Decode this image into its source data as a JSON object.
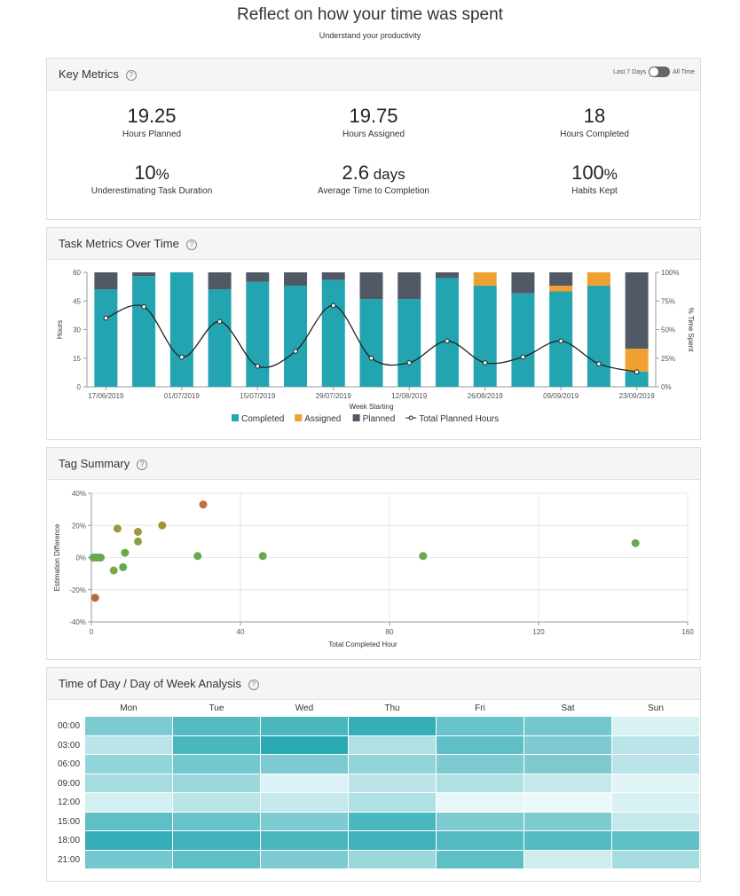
{
  "header": {
    "title": "Reflect on how your time was spent",
    "subtitle": "Understand your productivity"
  },
  "key_metrics": {
    "title": "Key Metrics",
    "toggle": {
      "left_label": "Last 7 Days",
      "right_label": "All Time",
      "state": "All Time"
    },
    "metrics": [
      {
        "value": "19.25",
        "unit": "",
        "label": "Hours Planned"
      },
      {
        "value": "19.75",
        "unit": "",
        "label": "Hours Assigned"
      },
      {
        "value": "18",
        "unit": "",
        "label": "Hours Completed"
      },
      {
        "value": "10",
        "unit": "%",
        "label": "Underestimating Task Duration"
      },
      {
        "value": "2.6",
        "unit": " days",
        "label": "Average Time to Completion"
      },
      {
        "value": "100",
        "unit": "%",
        "label": "Habits Kept"
      }
    ]
  },
  "task_metrics": {
    "title": "Task Metrics Over Time",
    "chart_data": {
      "type": "bar",
      "stacked": true,
      "xlabel": "Week Starting",
      "ylabel": "Hours",
      "y2label": "% Time Spent",
      "ylim": [
        0,
        60
      ],
      "yticks": [
        0,
        15,
        30,
        45,
        60
      ],
      "y2ticks": [
        "0%",
        "25%",
        "50%",
        "75%",
        "100%"
      ],
      "xticks": [
        "17/06/2019",
        "01/07/2019",
        "15/07/2019",
        "29/07/2019",
        "12/08/2019",
        "26/08/2019",
        "09/09/2019",
        "23/09/2019"
      ],
      "weeks": [
        "17/06/2019",
        "24/06/2019",
        "01/07/2019",
        "08/07/2019",
        "15/07/2019",
        "22/07/2019",
        "29/07/2019",
        "05/08/2019",
        "12/08/2019",
        "19/08/2019",
        "26/08/2019",
        "02/09/2019",
        "09/09/2019",
        "16/09/2019",
        "23/09/2019"
      ],
      "series": [
        {
          "name": "Completed",
          "color": "#22a5b0",
          "values": [
            51,
            58,
            60,
            51,
            55,
            53,
            56,
            46,
            46,
            57,
            53,
            49,
            50,
            53,
            8
          ]
        },
        {
          "name": "Assigned",
          "color": "#f0a030",
          "values": [
            0,
            0,
            0,
            0,
            0,
            0,
            0,
            0,
            0,
            0,
            7,
            0,
            3,
            7,
            12
          ]
        },
        {
          "name": "Planned",
          "color": "#525966",
          "values": [
            9,
            2,
            0,
            9,
            5,
            7,
            4,
            14,
            14,
            3,
            0,
            11,
            7,
            0,
            40
          ]
        }
      ],
      "line": {
        "name": "Total Planned Hours",
        "color": "#222222",
        "values": [
          60,
          70,
          26,
          57,
          18,
          31,
          71,
          25,
          21,
          40,
          21,
          26,
          40,
          20,
          13
        ]
      },
      "legend": "bottom"
    }
  },
  "tag_summary": {
    "title": "Tag Summary",
    "chart_data": {
      "type": "scatter",
      "xlabel": "Total Completed Hour",
      "ylabel": "Estimation Difference",
      "xlim": [
        0,
        160
      ],
      "ylim": [
        -40,
        40
      ],
      "xticks": [
        "0",
        "40",
        "80",
        "120",
        "160"
      ],
      "yticks": [
        "40%",
        "20%",
        "0%",
        "-20%",
        "-40%"
      ],
      "grid": true,
      "points": [
        {
          "x": 0.5,
          "y": 0,
          "color": "#6aa84f"
        },
        {
          "x": 1,
          "y": 0,
          "color": "#6aa84f"
        },
        {
          "x": 1.5,
          "y": 0,
          "color": "#6aa84f"
        },
        {
          "x": 2,
          "y": 0,
          "color": "#6aa84f"
        },
        {
          "x": 2.5,
          "y": 0,
          "color": "#6aa84f"
        },
        {
          "x": 1,
          "y": -25,
          "color": "#b46a3c"
        },
        {
          "x": 6,
          "y": -8,
          "color": "#7fa844"
        },
        {
          "x": 7,
          "y": 18,
          "color": "#a0963c"
        },
        {
          "x": 8.5,
          "y": -6,
          "color": "#6aa84f"
        },
        {
          "x": 9,
          "y": 3,
          "color": "#6aa84f"
        },
        {
          "x": 12.5,
          "y": 16,
          "color": "#a0963c"
        },
        {
          "x": 12.5,
          "y": 10,
          "color": "#8aa040"
        },
        {
          "x": 19,
          "y": 20,
          "color": "#a8903c"
        },
        {
          "x": 28.5,
          "y": 1,
          "color": "#6aa84f"
        },
        {
          "x": 30,
          "y": 33,
          "color": "#c0703a"
        },
        {
          "x": 46,
          "y": 1,
          "color": "#6aa84f"
        },
        {
          "x": 89,
          "y": 1,
          "color": "#6aa84f"
        },
        {
          "x": 146,
          "y": 9,
          "color": "#6aa84f"
        }
      ]
    }
  },
  "time_analysis": {
    "title": "Time of Day / Day of Week Analysis",
    "chart_data": {
      "type": "heatmap",
      "days": [
        "Mon",
        "Tue",
        "Wed",
        "Thu",
        "Fri",
        "Sat",
        "Sun"
      ],
      "hours": [
        "00:00",
        "03:00",
        "06:00",
        "09:00",
        "12:00",
        "15:00",
        "18:00",
        "21:00"
      ],
      "values": [
        [
          0.55,
          0.75,
          0.8,
          0.9,
          0.65,
          0.6,
          0.1
        ],
        [
          0.25,
          0.8,
          0.95,
          0.3,
          0.7,
          0.55,
          0.25
        ],
        [
          0.45,
          0.6,
          0.55,
          0.45,
          0.55,
          0.55,
          0.25
        ],
        [
          0.35,
          0.4,
          0.08,
          0.25,
          0.3,
          0.2,
          0.05
        ],
        [
          0.12,
          0.25,
          0.2,
          0.3,
          0.03,
          0.0,
          0.1
        ],
        [
          0.7,
          0.65,
          0.55,
          0.8,
          0.55,
          0.55,
          0.2
        ],
        [
          0.9,
          0.85,
          0.8,
          0.85,
          0.75,
          0.75,
          0.7
        ],
        [
          0.6,
          0.7,
          0.55,
          0.4,
          0.7,
          0.15,
          0.35
        ]
      ]
    }
  }
}
